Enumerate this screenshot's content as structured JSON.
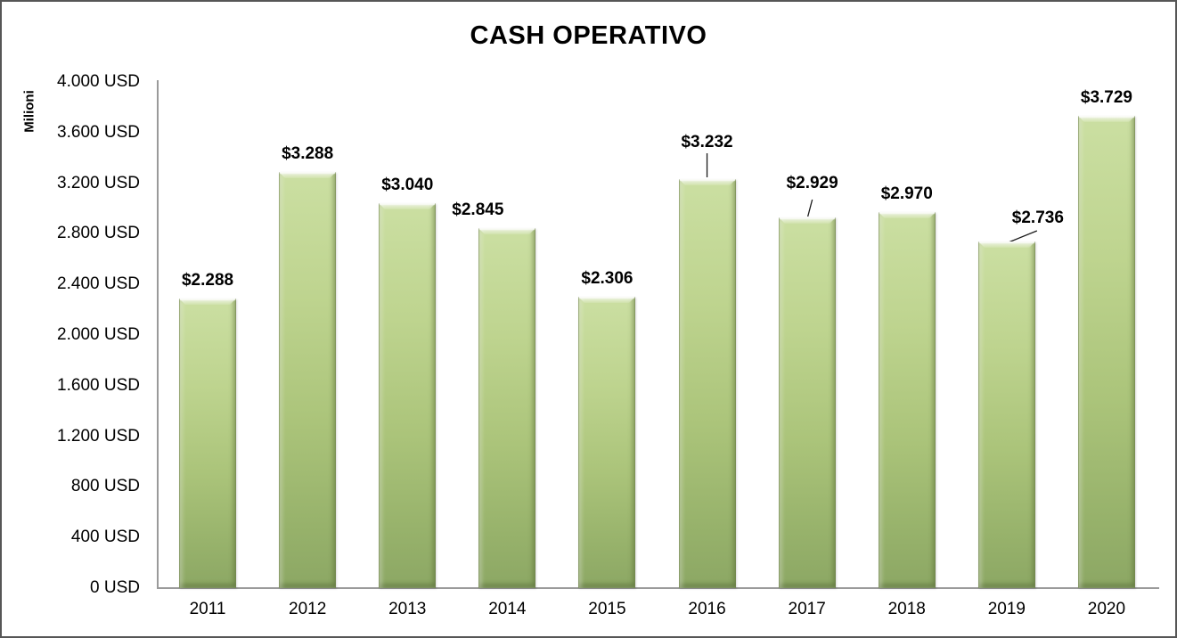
{
  "title": "CASH OPERATIVO",
  "chart_data": {
    "type": "bar",
    "title": "CASH OPERATIVO",
    "ylabel": "Milioni",
    "xlabel": "",
    "categories": [
      "2011",
      "2012",
      "2013",
      "2014",
      "2015",
      "2016",
      "2017",
      "2018",
      "2019",
      "2020"
    ],
    "values": [
      2288,
      3288,
      3040,
      2845,
      2306,
      3232,
      2929,
      2970,
      2736,
      3729
    ],
    "data_labels": [
      "$2.288",
      "$3.288",
      "$3.040",
      "$2.845",
      "$2.306",
      "$3.232",
      "$2.929",
      "$2.970",
      "$2.736",
      "$3.729"
    ],
    "y_ticks": [
      {
        "value": 0,
        "label": "0 USD"
      },
      {
        "value": 400,
        "label": "400 USD"
      },
      {
        "value": 800,
        "label": "800 USD"
      },
      {
        "value": 1200,
        "label": "1.200 USD"
      },
      {
        "value": 1600,
        "label": "1.600 USD"
      },
      {
        "value": 2000,
        "label": "2.000 USD"
      },
      {
        "value": 2400,
        "label": "2.400 USD"
      },
      {
        "value": 2800,
        "label": "2.800 USD"
      },
      {
        "value": 3200,
        "label": "3.200 USD"
      },
      {
        "value": 3600,
        "label": "3.600 USD"
      },
      {
        "value": 4000,
        "label": "4.000 USD"
      }
    ],
    "ylim": [
      0,
      4000
    ],
    "grid": false,
    "legend": "none",
    "colors": {
      "bar_top": "#cbdfa2",
      "bar_bottom": "#8ca764",
      "axis_line": "#9a9a9a",
      "text": "#000000",
      "frame_border": "#565656",
      "leader_line": "#1a1a1a"
    }
  }
}
